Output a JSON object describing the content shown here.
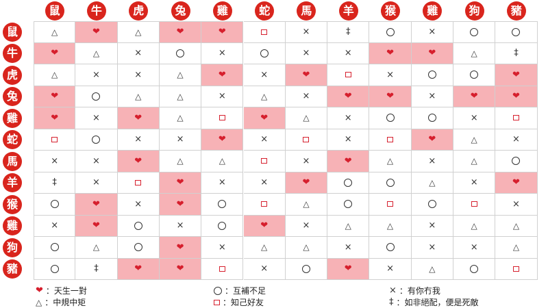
{
  "headers": [
    "鼠",
    "牛",
    "虎",
    "兔",
    "雞",
    "蛇",
    "馬",
    "羊",
    "猴",
    "雞",
    "狗",
    "豬"
  ],
  "rows": [
    "鼠",
    "牛",
    "虎",
    "兔",
    "雞",
    "蛇",
    "馬",
    "羊",
    "猴",
    "雞",
    "狗",
    "豬"
  ],
  "symbols": {
    "H": {
      "glyph": "❤",
      "icon": "heart-icon",
      "label": "：天生一對"
    },
    "O": {
      "glyph": "",
      "icon": "circle-icon",
      "label": "：互補不足"
    },
    "X": {
      "glyph": "×",
      "icon": "cross-icon",
      "label": "：有你冇我"
    },
    "T": {
      "glyph": "△",
      "icon": "triangle-icon",
      "label": "：中規中矩"
    },
    "S": {
      "glyph": "",
      "icon": "square-icon",
      "label": "：知己好友"
    },
    "D": {
      "glyph": "‡",
      "icon": "dagger-icon",
      "label": "：如非絕配，便是死敵"
    }
  },
  "matrix": [
    [
      "T",
      "H",
      "T",
      "H",
      "H",
      "S",
      "X",
      "D",
      "O",
      "X",
      "O",
      "O"
    ],
    [
      "H",
      "T",
      "X",
      "O",
      "X",
      "O",
      "X",
      "X",
      "H",
      "H",
      "T",
      "D"
    ],
    [
      "T",
      "X",
      "X",
      "T",
      "H",
      "X",
      "H",
      "S",
      "X",
      "O",
      "O",
      "H"
    ],
    [
      "H",
      "O",
      "T",
      "T",
      "X",
      "T",
      "X",
      "H",
      "H",
      "X",
      "H",
      "H"
    ],
    [
      "H",
      "X",
      "H",
      "T",
      "S",
      "H",
      "T",
      "X",
      "O",
      "O",
      "X",
      "S"
    ],
    [
      "S",
      "O",
      "X",
      "X",
      "H",
      "X",
      "S",
      "X",
      "S",
      "H",
      "T",
      "X"
    ],
    [
      "X",
      "X",
      "H",
      "T",
      "T",
      "S",
      "X",
      "H",
      "T",
      "X",
      "T",
      "O"
    ],
    [
      "D",
      "X",
      "S",
      "H",
      "X",
      "X",
      "H",
      "O",
      "O",
      "T",
      "X",
      "H"
    ],
    [
      "O",
      "H",
      "X",
      "H",
      "O",
      "S",
      "T",
      "O",
      "S",
      "O",
      "S",
      "X"
    ],
    [
      "X",
      "H",
      "O",
      "X",
      "O",
      "H",
      "X",
      "T",
      "T",
      "X",
      "T",
      "T"
    ],
    [
      "O",
      "T",
      "O",
      "H",
      "X",
      "T",
      "T",
      "X",
      "O",
      "X",
      "X",
      "T"
    ],
    [
      "O",
      "D",
      "H",
      "H",
      "S",
      "X",
      "O",
      "H",
      "X",
      "T",
      "O",
      "S"
    ]
  ],
  "legend": [
    [
      "H",
      "O",
      "X"
    ],
    [
      "T",
      "S",
      "D"
    ]
  ],
  "colors": {
    "badge": "#d9251d",
    "highlight": "#f7b2b6",
    "heart": "#d61f2d"
  }
}
